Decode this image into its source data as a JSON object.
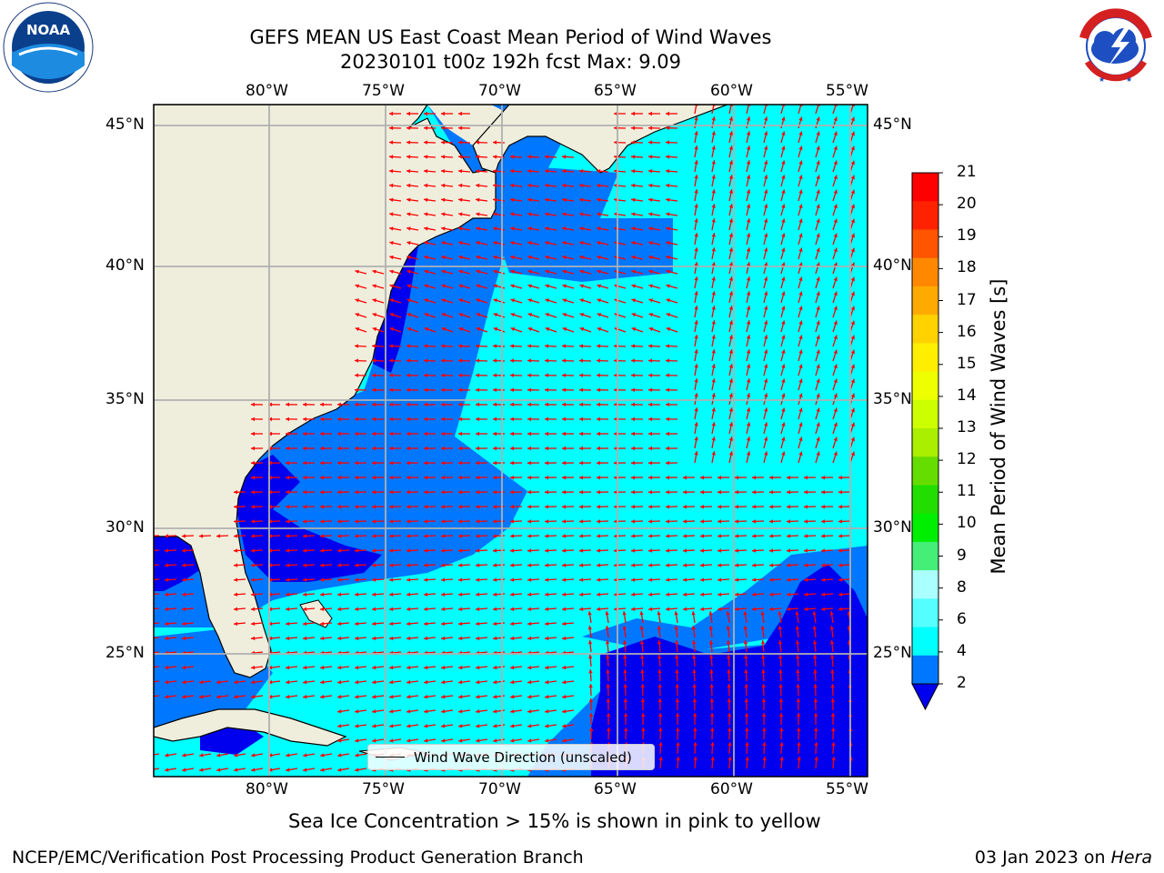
{
  "title": {
    "line1": "GEFS MEAN US East Coast Mean Period of Wind Waves",
    "line2": "20230101 t00z 192h fcst   Max: 9.09"
  },
  "axes": {
    "lon_labels": [
      "80°W",
      "75°W",
      "70°W",
      "65°W",
      "60°W",
      "55°W"
    ],
    "lat_labels": [
      "45°N",
      "40°N",
      "35°N",
      "30°N",
      "25°N"
    ]
  },
  "legend": {
    "label": "Wind Wave Direction (unscaled)"
  },
  "colorbar": {
    "label": "Mean Period of Wind Waves [s]",
    "ticks": [
      "21",
      "20",
      "19",
      "18",
      "17",
      "16",
      "15",
      "14",
      "13",
      "12",
      "11",
      "10",
      "9",
      "8",
      "6",
      "4",
      "2"
    ],
    "colors": [
      "#ff0000",
      "#ff2200",
      "#ff5500",
      "#ff8800",
      "#ffaa00",
      "#ffd200",
      "#ffee00",
      "#eeff00",
      "#ccff00",
      "#aaee00",
      "#66dd00",
      "#22dd00",
      "#00ee00",
      "#44ee77",
      "#aaffff",
      "#55ffff",
      "#00ffff",
      "#0077ff"
    ],
    "extend_color": "#0000ee"
  },
  "chart_data": {
    "type": "heatmap",
    "variable": "Mean Period of Wind Waves [s]",
    "max": 9.09,
    "lon_ticks": [
      -80,
      -75,
      -70,
      -65,
      -60,
      -55
    ],
    "lat_ticks": [
      45,
      40,
      35,
      30,
      25
    ],
    "colorbar_levels": [
      2,
      4,
      6,
      8,
      9,
      10,
      11,
      12,
      13,
      14,
      15,
      16,
      17,
      18,
      19,
      20,
      21
    ]
  },
  "footer": {
    "note": "Sea Ice Concentration > 15% is shown in pink to yellow",
    "left": "NCEP/EMC/Verification Post Processing Product Generation Branch",
    "right_date": "03 Jan 2023 on ",
    "right_host": "Hera"
  },
  "logos": {
    "noaa": "NOAA",
    "nws": "NATIONAL WEATHER SERVICE"
  },
  "colors": {
    "land": "#efeedd",
    "grid": "#b0b0b0",
    "arrow": "#ff0000",
    "deep": "#0000ee",
    "mid": "#0077ff",
    "cyan": "#00ffff"
  }
}
